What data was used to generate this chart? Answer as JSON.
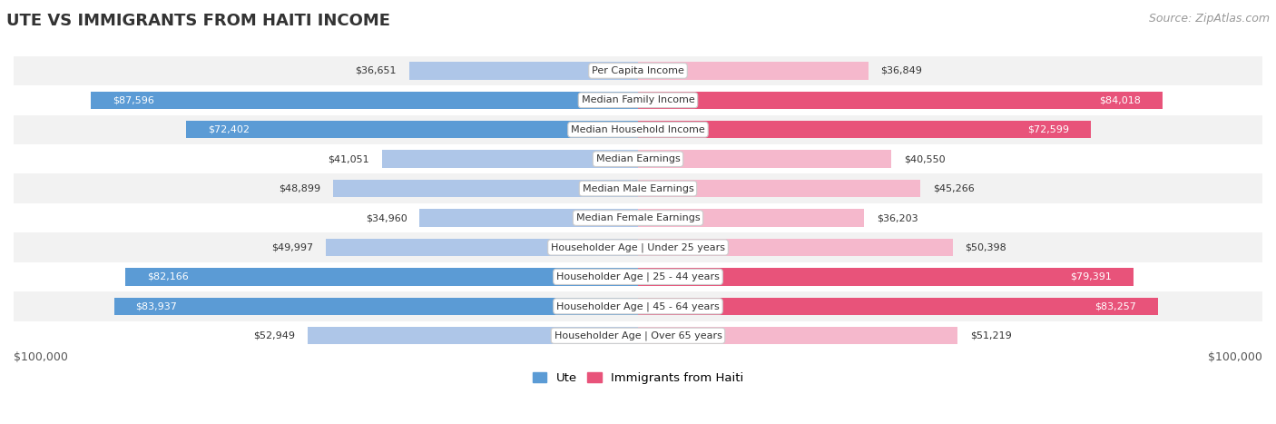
{
  "title": "UTE VS IMMIGRANTS FROM HAITI INCOME",
  "source": "Source: ZipAtlas.com",
  "categories": [
    "Per Capita Income",
    "Median Family Income",
    "Median Household Income",
    "Median Earnings",
    "Median Male Earnings",
    "Median Female Earnings",
    "Householder Age | Under 25 years",
    "Householder Age | 25 - 44 years",
    "Householder Age | 45 - 64 years",
    "Householder Age | Over 65 years"
  ],
  "ute_values": [
    36651,
    87596,
    72402,
    41051,
    48899,
    34960,
    49997,
    82166,
    83937,
    52949
  ],
  "haiti_values": [
    36849,
    84018,
    72599,
    40550,
    45266,
    36203,
    50398,
    79391,
    83257,
    51219
  ],
  "ute_labels": [
    "$36,651",
    "$87,596",
    "$72,402",
    "$41,051",
    "$48,899",
    "$34,960",
    "$49,997",
    "$82,166",
    "$83,937",
    "$52,949"
  ],
  "haiti_labels": [
    "$36,849",
    "$84,018",
    "$72,599",
    "$40,550",
    "$45,266",
    "$36,203",
    "$50,398",
    "$79,391",
    "$83,257",
    "$51,219"
  ],
  "max_value": 100000,
  "ute_color_light": "#aec6e8",
  "ute_color_dark": "#5b9bd5",
  "haiti_color_light": "#f5b8cc",
  "haiti_color_dark": "#e8537a",
  "row_bg_odd": "#f2f2f2",
  "row_bg_even": "#ffffff",
  "bar_height": 0.6,
  "legend_ute": "Ute",
  "legend_haiti": "Immigrants from Haiti",
  "xlabel_left": "$100,000",
  "xlabel_right": "$100,000",
  "title_fontsize": 13,
  "source_fontsize": 9,
  "tick_fontsize": 9,
  "cat_fontsize": 8,
  "val_fontsize": 8,
  "large_threshold": 60000
}
